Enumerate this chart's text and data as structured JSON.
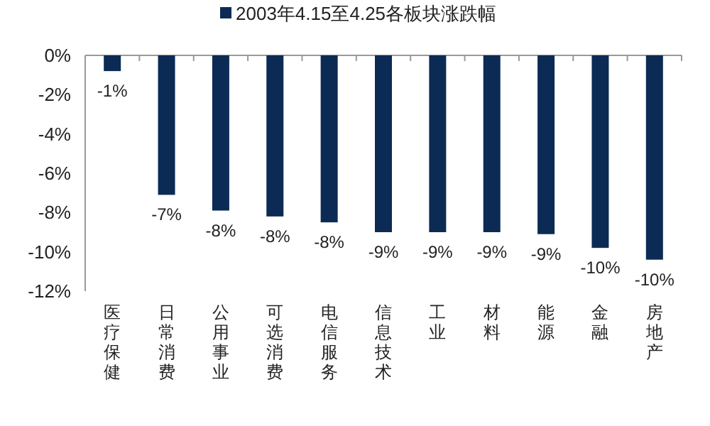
{
  "chart_data": {
    "type": "bar",
    "categories": [
      "医疗保健",
      "日常消费",
      "公用事业",
      "可选消费",
      "电信服务",
      "信息技术",
      "工业",
      "材料",
      "能源",
      "金融",
      "房地产"
    ],
    "series": [
      {
        "name": "2003年4.15至4.25各板块涨跌幅",
        "color": "#0c2b54",
        "values": [
          -0.8,
          -7.1,
          -7.9,
          -8.2,
          -8.5,
          -9.0,
          -9.0,
          -9.0,
          -9.1,
          -9.8,
          -10.4
        ],
        "value_labels": [
          "-1%",
          "-7%",
          "-8%",
          "-8%",
          "-8%",
          "-9%",
          "-9%",
          "-9%",
          "-9%",
          "-10%",
          "-10%"
        ]
      }
    ],
    "ylim": [
      -12,
      0
    ],
    "yticks": [
      {
        "value": 0,
        "label": "0%"
      },
      {
        "value": -2,
        "label": "-2%"
      },
      {
        "value": -4,
        "label": "-4%"
      },
      {
        "value": -6,
        "label": "-6%"
      },
      {
        "value": -8,
        "label": "-8%"
      },
      {
        "value": -10,
        "label": "-10%"
      },
      {
        "value": -12,
        "label": "-12%"
      }
    ],
    "legend": "top",
    "grid": false
  }
}
